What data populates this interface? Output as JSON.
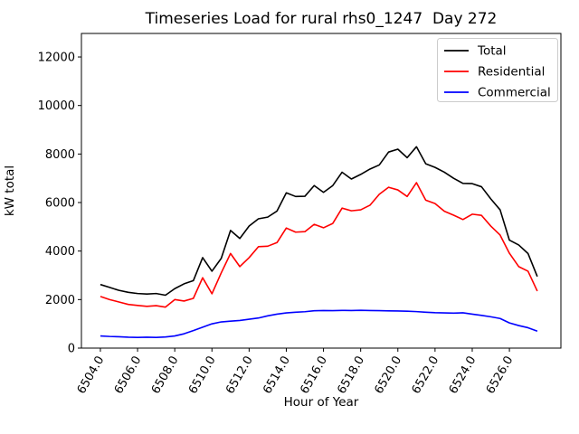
{
  "figure": {
    "title": "Timeseries Load for rural rhs0_1247  Day 272",
    "xlabel": "Hour of Year",
    "ylabel": "kW total"
  },
  "legend": {
    "position": "upper right",
    "entries": [
      {
        "label": "Total",
        "color": "#000000"
      },
      {
        "label": "Residential",
        "color": "#ff0000"
      },
      {
        "label": "Commercial",
        "color": "#0000ff"
      }
    ]
  },
  "colors": {
    "background": "#ffffff",
    "axis": "#000000",
    "legend_border": "#cccccc"
  },
  "chart_data": {
    "type": "line",
    "title": "Timeseries Load for rural rhs0_1247  Day 272",
    "xlabel": "Hour of Year",
    "ylabel": "kW total",
    "grid": false,
    "legend_position": "upper right",
    "xlim": [
      6502.98,
      6528.77
    ],
    "ylim": [
      0,
      12970
    ],
    "x_ticks": [
      6504,
      6506,
      6508,
      6510,
      6512,
      6514,
      6516,
      6518,
      6520,
      6522,
      6524,
      6526
    ],
    "x_tick_labels": [
      "6504.0",
      "6506.0",
      "6508.0",
      "6510.0",
      "6512.0",
      "6514.0",
      "6516.0",
      "6518.0",
      "6520.0",
      "6522.0",
      "6524.0",
      "6526.0"
    ],
    "y_ticks": [
      0,
      2000,
      4000,
      6000,
      8000,
      10000,
      12000
    ],
    "y_tick_labels": [
      "0",
      "2000",
      "4000",
      "6000",
      "8000",
      "10000",
      "12000"
    ],
    "x": [
      6504.0,
      6504.5,
      6505.0,
      6505.5,
      6506.0,
      6506.5,
      6507.0,
      6507.5,
      6508.0,
      6508.5,
      6509.0,
      6509.5,
      6510.0,
      6510.5,
      6511.0,
      6511.5,
      6512.0,
      6512.5,
      6513.0,
      6513.5,
      6514.0,
      6514.5,
      6515.0,
      6515.5,
      6516.0,
      6516.5,
      6517.0,
      6517.5,
      6518.0,
      6518.5,
      6519.0,
      6519.5,
      6520.0,
      6520.5,
      6521.0,
      6521.5,
      6522.0,
      6522.5,
      6523.0,
      6523.5,
      6524.0,
      6524.5,
      6525.0,
      6525.5,
      6526.0,
      6526.5,
      6527.0,
      6527.5
    ],
    "series": [
      {
        "name": "Total",
        "color": "#000000",
        "values": [
          2620,
          2500,
          2380,
          2300,
          2250,
          2230,
          2250,
          2180,
          2450,
          2650,
          2780,
          3730,
          3170,
          3700,
          4850,
          4520,
          5030,
          5330,
          5400,
          5650,
          6400,
          6250,
          6260,
          6700,
          6420,
          6700,
          7250,
          6970,
          7160,
          7380,
          7550,
          8080,
          8200,
          7850,
          8300,
          7600,
          7450,
          7250,
          7000,
          6790,
          6780,
          6650,
          6150,
          5700,
          4450,
          4250,
          3900,
          2950
        ]
      },
      {
        "name": "Residential",
        "color": "#ff0000",
        "values": [
          2130,
          2000,
          1900,
          1800,
          1760,
          1720,
          1750,
          1690,
          2000,
          1940,
          2050,
          2900,
          2240,
          3100,
          3900,
          3360,
          3730,
          4180,
          4200,
          4350,
          4950,
          4780,
          4800,
          5100,
          4960,
          5140,
          5770,
          5660,
          5700,
          5890,
          6340,
          6630,
          6520,
          6250,
          6820,
          6100,
          5960,
          5640,
          5480,
          5300,
          5520,
          5470,
          5030,
          4660,
          3910,
          3360,
          3170,
          2350
        ]
      },
      {
        "name": "Commercial",
        "color": "#0000ff",
        "values": [
          500,
          480,
          470,
          450,
          440,
          450,
          440,
          460,
          500,
          590,
          720,
          860,
          1000,
          1080,
          1110,
          1140,
          1190,
          1240,
          1330,
          1400,
          1450,
          1480,
          1500,
          1540,
          1550,
          1545,
          1555,
          1550,
          1560,
          1550,
          1545,
          1535,
          1530,
          1520,
          1505,
          1480,
          1460,
          1450,
          1440,
          1455,
          1400,
          1350,
          1290,
          1220,
          1040,
          930,
          840,
          700
        ]
      }
    ]
  }
}
